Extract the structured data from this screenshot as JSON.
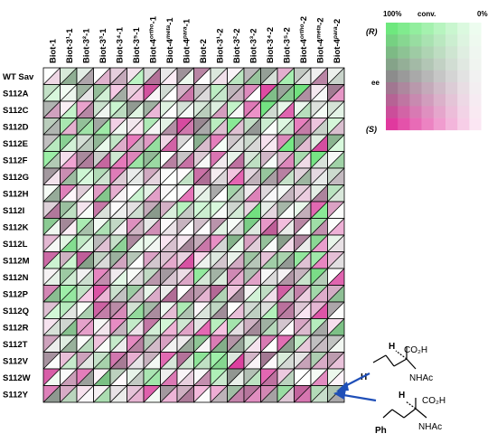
{
  "chart_data": {
    "type": "heatmap",
    "title": "",
    "cell_encoding": "each cell split diagonally: upper-left triangle = conversion/ee of first substrate, lower-right = second substrate",
    "columns": [
      "Biot-1",
      "Biot-3¹-1",
      "Biot-3²-1",
      "Biot-3³-1",
      "Biot-3⁴-1",
      "Biot-3⁵-1",
      "Biot-4ortho-1",
      "Biot-4meta-1",
      "Biot-4para-1",
      "Biot-2",
      "Biot-3¹-2",
      "Biot-3²-2",
      "Biot-3³-2",
      "Biot-3⁴-2",
      "Biot-3⁵-2",
      "Biot-4ortho-2",
      "Biot-4meta-2",
      "Biot-4para-2"
    ],
    "rows": [
      "WT Sav",
      "S112A",
      "S112C",
      "S112D",
      "S112E",
      "S112F",
      "S112G",
      "S112H",
      "S112I",
      "S112K",
      "S112L",
      "S112M",
      "S112N",
      "S112P",
      "S112Q",
      "S112R",
      "S112T",
      "S112V",
      "S112W",
      "S112Y"
    ],
    "legend": {
      "top_left": "100%",
      "top_center": "conv.",
      "top_right": "0%",
      "axis_top": "(R)",
      "axis_middle": "ee",
      "axis_bottom": "(S)",
      "colors": {
        "R": "#6ee87e",
        "S": "#e0399e",
        "racemic": "#8c8c8c",
        "zero": "#ffffff"
      }
    },
    "color_scale": "conversion 0–1 (fade to white) × ee -1 (S, magenta) … +1 (R, green)",
    "products": {
      "upper": {
        "formula": "CO₂H",
        "amide": "NHAc",
        "stereo": "H",
        "substituent": "H"
      },
      "lower": {
        "formula": "CO₂H",
        "amide": "NHAc",
        "stereo": "H",
        "substituent": "Ph"
      }
    }
  }
}
